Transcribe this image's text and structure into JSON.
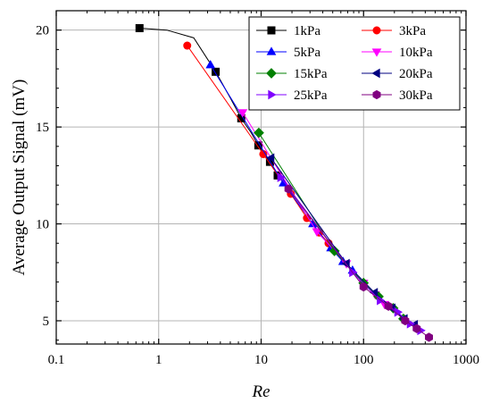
{
  "chart_data": {
    "type": "scatter",
    "title": "",
    "xlabel": "Re",
    "ylabel": "Average Output Signal (mV)",
    "x_scale": "log",
    "xlim": [
      0.1,
      1000
    ],
    "ylim": [
      3.8,
      21.0
    ],
    "x_ticks": [
      0.1,
      1,
      10,
      100,
      1000
    ],
    "x_tick_labels": [
      "0.1",
      "1",
      "10",
      "100",
      "1000"
    ],
    "y_ticks": [
      5,
      10,
      15,
      20
    ],
    "y_tick_labels": [
      "5",
      "10",
      "15",
      "20"
    ],
    "grid": true,
    "legend_position": "top-right",
    "series": [
      {
        "name": "1kPa",
        "color": "#000000",
        "marker": "square",
        "x": [
          0.65,
          3.6,
          6.4,
          9.4,
          12.2,
          14.5
        ],
        "y": [
          20.1,
          17.85,
          15.45,
          14.05,
          13.2,
          12.5
        ],
        "curve_x": [
          0.65,
          1.2,
          2.2,
          3.6,
          5,
          6.4,
          8,
          9.4,
          12.2,
          14.5
        ],
        "curve_y": [
          20.1,
          20.0,
          19.6,
          17.85,
          16.5,
          15.45,
          14.7,
          14.05,
          13.2,
          12.5
        ]
      },
      {
        "name": "3kPa",
        "color": "#ff0000",
        "marker": "circle",
        "x": [
          1.9,
          10.5,
          19.5,
          28,
          37,
          45.5
        ],
        "y": [
          19.2,
          13.6,
          11.55,
          10.3,
          9.55,
          9.0
        ]
      },
      {
        "name": "5kPa",
        "color": "#0000ff",
        "marker": "triangle-up",
        "x": [
          3.2,
          16.5,
          32,
          48,
          63,
          78
        ],
        "y": [
          18.2,
          12.1,
          10.0,
          8.75,
          8.05,
          7.6
        ]
      },
      {
        "name": "10kPa",
        "color": "#ff00ff",
        "marker": "triangle-down",
        "x": [
          6.6,
          35,
          68,
          100,
          130,
          160
        ],
        "y": [
          15.75,
          9.6,
          7.95,
          6.95,
          6.35,
          5.85
        ]
      },
      {
        "name": "15kPa",
        "color": "#008000",
        "marker": "diamond",
        "x": [
          9.5,
          52,
          100,
          140,
          195,
          245
        ],
        "y": [
          14.7,
          8.6,
          6.95,
          6.25,
          5.65,
          5.1
        ]
      },
      {
        "name": "20kPa",
        "color": "#000080",
        "marker": "triangle-left",
        "x": [
          12.5,
          68,
          128,
          190,
          250,
          315
        ],
        "y": [
          13.4,
          7.95,
          6.45,
          5.65,
          5.1,
          4.8
        ]
      },
      {
        "name": "25kPa",
        "color": "#8000ff",
        "marker": "triangle-right",
        "x": [
          15.5,
          78,
          145,
          215,
          285,
          360
        ],
        "y": [
          12.4,
          7.5,
          6.05,
          5.45,
          4.85,
          4.5
        ]
      },
      {
        "name": "30kPa",
        "color": "#800080",
        "marker": "hexagon",
        "x": [
          18.5,
          100,
          175,
          255,
          330,
          435
        ],
        "y": [
          11.8,
          6.75,
          5.75,
          5.0,
          4.6,
          4.15
        ]
      }
    ]
  }
}
